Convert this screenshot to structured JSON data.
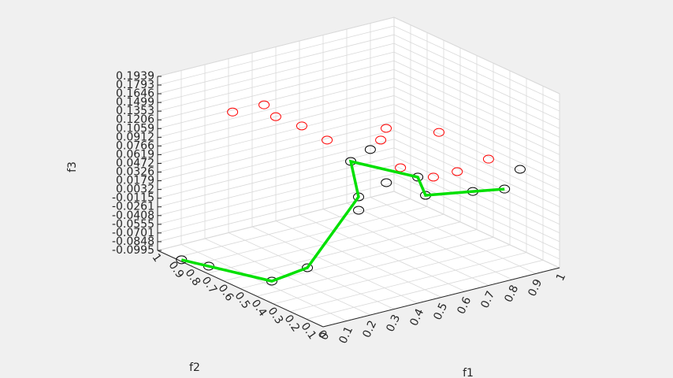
{
  "chart_data": {
    "type": "scatter3d",
    "xlabel": "f1",
    "ylabel": "f2",
    "zlabel": "f3",
    "xlim": [
      0,
      1
    ],
    "ylim": [
      0,
      1
    ],
    "zlim": [
      -0.0995,
      0.1939
    ],
    "xticks": [
      0,
      0.1,
      0.2,
      0.3,
      0.4,
      0.5,
      0.6,
      0.7,
      0.8,
      0.9,
      1
    ],
    "yticks": [
      0,
      0.1,
      0.2,
      0.3,
      0.4,
      0.5,
      0.6,
      0.7,
      0.8,
      0.9,
      1
    ],
    "zticks": [
      -0.0995,
      -0.0848,
      -0.0701,
      -0.0555,
      -0.0408,
      -0.0261,
      -0.0115,
      0.0032,
      0.0179,
      0.0326,
      0.0472,
      0.0619,
      0.0766,
      0.0912,
      0.1059,
      0.1206,
      0.1353,
      0.1499,
      0.1646,
      0.1793,
      0.1939
    ],
    "grid": true,
    "series": [
      {
        "style": "marker",
        "color": "#ff0000",
        "x": [
          0.184,
          0.278,
          0.31,
          0.397,
          0.453,
          0.579,
          0.7,
          0.818,
          0.631,
          0.736,
          0.799,
          0.6
        ],
        "y": [
          0.81,
          0.754,
          0.729,
          0.696,
          0.623,
          0.446,
          0.3,
          0.169,
          0.434,
          0.385,
          0.331,
          0.509
        ],
        "z": [
          0.14,
          0.15,
          0.13,
          0.11,
          0.09,
          0.12,
          0.12,
          0.08,
          0.05,
          0.03,
          0.04,
          0.09
        ]
      },
      {
        "style": "marker",
        "color": "#000000",
        "x": [
          0.01,
          0.047,
          0.131,
          0.308,
          0.475,
          0.519,
          0.532,
          0.586,
          0.609,
          0.693,
          0.712,
          0.865,
          0.966,
          0.985
        ],
        "y": [
          0.87,
          0.758,
          0.497,
          0.535,
          0.464,
          0.527,
          0.593,
          0.552,
          0.488,
          0.418,
          0.398,
          0.331,
          0.284,
          0.217
        ],
        "z": [
          -0.0995,
          -0.0995,
          -0.0995,
          -0.0995,
          -0.01,
          0,
          0.05,
          0.07,
          0.02,
          0.03,
          0,
          0,
          0,
          0.04
        ]
      },
      {
        "style": "line",
        "color": "#00e000",
        "x": [
          0.01,
          0.131,
          0.308,
          0.519,
          0.532,
          0.693,
          0.712,
          0.865,
          0.966
        ],
        "y": [
          0.87,
          0.497,
          0.535,
          0.527,
          0.593,
          0.418,
          0.398,
          0.331,
          0.284
        ],
        "z": [
          -0.0995,
          -0.0995,
          -0.0995,
          0,
          0.05,
          0.03,
          0,
          0,
          0
        ]
      }
    ]
  }
}
